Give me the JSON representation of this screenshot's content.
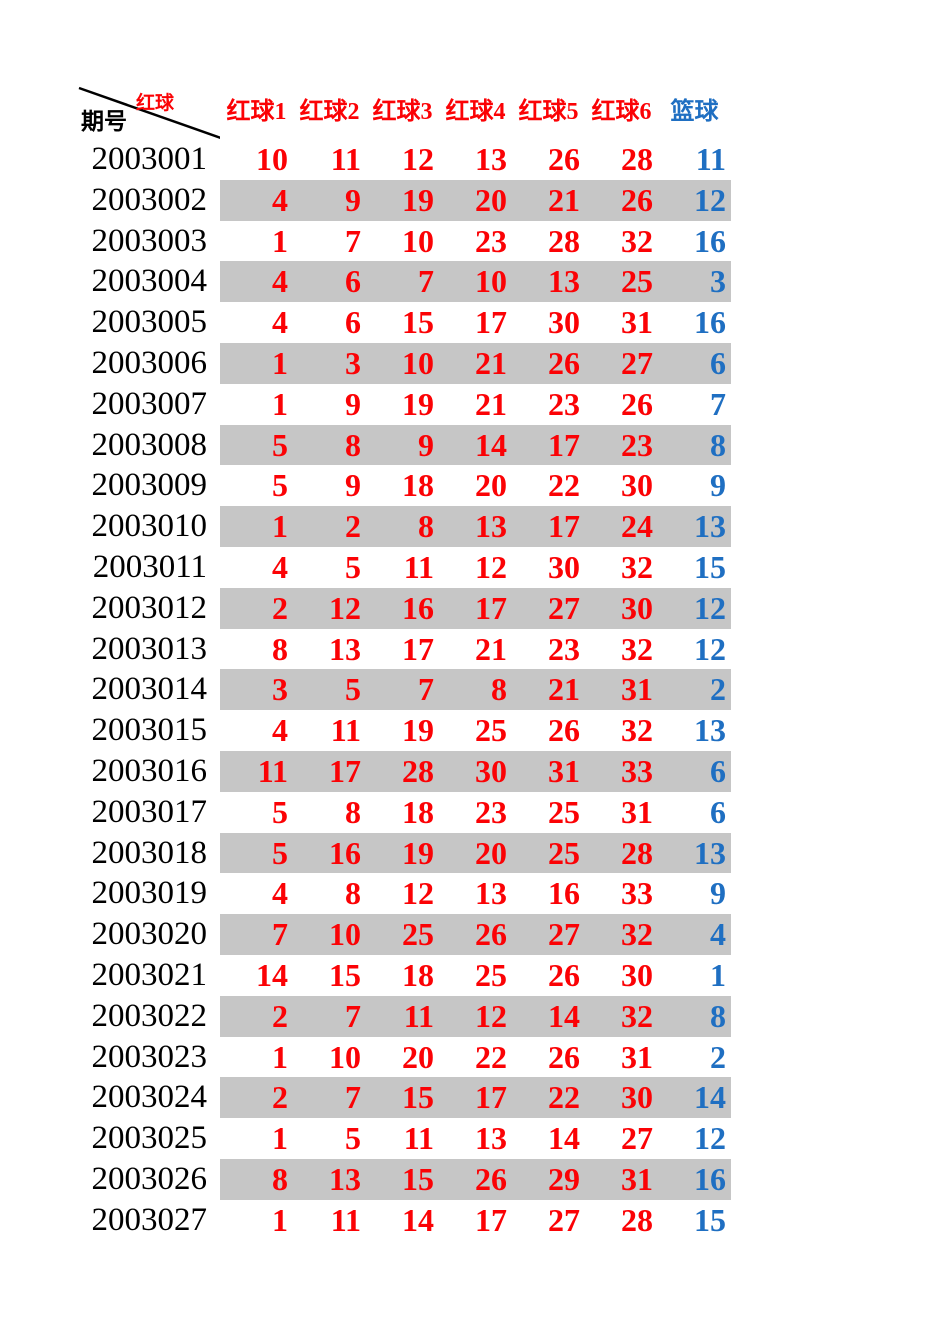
{
  "colors": {
    "red_ball": "#FB0205",
    "blue_ball": "#1F6FC2",
    "stripe": "#C6C6C6",
    "text": "#000000",
    "diagonal_line": "#000000",
    "background": "#FFFFFF"
  },
  "table": {
    "corner": {
      "top_label": "红球",
      "bottom_label": "期号"
    },
    "columns": [
      "红球1",
      "红球2",
      "红球3",
      "红球4",
      "红球5",
      "红球6",
      "篮球"
    ],
    "rows": [
      {
        "period": "2003001",
        "red_balls": [
          10,
          11,
          12,
          13,
          26,
          28
        ],
        "blue_ball": 11,
        "striped": false
      },
      {
        "period": "2003002",
        "red_balls": [
          4,
          9,
          19,
          20,
          21,
          26
        ],
        "blue_ball": 12,
        "striped": true
      },
      {
        "period": "2003003",
        "red_balls": [
          1,
          7,
          10,
          23,
          28,
          32
        ],
        "blue_ball": 16,
        "striped": false
      },
      {
        "period": "2003004",
        "red_balls": [
          4,
          6,
          7,
          10,
          13,
          25
        ],
        "blue_ball": 3,
        "striped": true
      },
      {
        "period": "2003005",
        "red_balls": [
          4,
          6,
          15,
          17,
          30,
          31
        ],
        "blue_ball": 16,
        "striped": false
      },
      {
        "period": "2003006",
        "red_balls": [
          1,
          3,
          10,
          21,
          26,
          27
        ],
        "blue_ball": 6,
        "striped": true
      },
      {
        "period": "2003007",
        "red_balls": [
          1,
          9,
          19,
          21,
          23,
          26
        ],
        "blue_ball": 7,
        "striped": false
      },
      {
        "period": "2003008",
        "red_balls": [
          5,
          8,
          9,
          14,
          17,
          23
        ],
        "blue_ball": 8,
        "striped": true
      },
      {
        "period": "2003009",
        "red_balls": [
          5,
          9,
          18,
          20,
          22,
          30
        ],
        "blue_ball": 9,
        "striped": false
      },
      {
        "period": "2003010",
        "red_balls": [
          1,
          2,
          8,
          13,
          17,
          24
        ],
        "blue_ball": 13,
        "striped": true
      },
      {
        "period": "2003011",
        "red_balls": [
          4,
          5,
          11,
          12,
          30,
          32
        ],
        "blue_ball": 15,
        "striped": false
      },
      {
        "period": "2003012",
        "red_balls": [
          2,
          12,
          16,
          17,
          27,
          30
        ],
        "blue_ball": 12,
        "striped": true
      },
      {
        "period": "2003013",
        "red_balls": [
          8,
          13,
          17,
          21,
          23,
          32
        ],
        "blue_ball": 12,
        "striped": false
      },
      {
        "period": "2003014",
        "red_balls": [
          3,
          5,
          7,
          8,
          21,
          31
        ],
        "blue_ball": 2,
        "striped": true
      },
      {
        "period": "2003015",
        "red_balls": [
          4,
          11,
          19,
          25,
          26,
          32
        ],
        "blue_ball": 13,
        "striped": false
      },
      {
        "period": "2003016",
        "red_balls": [
          11,
          17,
          28,
          30,
          31,
          33
        ],
        "blue_ball": 6,
        "striped": true
      },
      {
        "period": "2003017",
        "red_balls": [
          5,
          8,
          18,
          23,
          25,
          31
        ],
        "blue_ball": 6,
        "striped": false
      },
      {
        "period": "2003018",
        "red_balls": [
          5,
          16,
          19,
          20,
          25,
          28
        ],
        "blue_ball": 13,
        "striped": true
      },
      {
        "period": "2003019",
        "red_balls": [
          4,
          8,
          12,
          13,
          16,
          33
        ],
        "blue_ball": 9,
        "striped": false
      },
      {
        "period": "2003020",
        "red_balls": [
          7,
          10,
          25,
          26,
          27,
          32
        ],
        "blue_ball": 4,
        "striped": true
      },
      {
        "period": "2003021",
        "red_balls": [
          14,
          15,
          18,
          25,
          26,
          30
        ],
        "blue_ball": 1,
        "striped": false
      },
      {
        "period": "2003022",
        "red_balls": [
          2,
          7,
          11,
          12,
          14,
          32
        ],
        "blue_ball": 8,
        "striped": true
      },
      {
        "period": "2003023",
        "red_balls": [
          1,
          10,
          20,
          22,
          26,
          31
        ],
        "blue_ball": 2,
        "striped": false
      },
      {
        "period": "2003024",
        "red_balls": [
          2,
          7,
          15,
          17,
          22,
          30
        ],
        "blue_ball": 14,
        "striped": true
      },
      {
        "period": "2003025",
        "red_balls": [
          1,
          5,
          11,
          13,
          14,
          27
        ],
        "blue_ball": 12,
        "striped": false
      },
      {
        "period": "2003026",
        "red_balls": [
          8,
          13,
          15,
          26,
          29,
          31
        ],
        "blue_ball": 16,
        "striped": true
      },
      {
        "period": "2003027",
        "red_balls": [
          1,
          11,
          14,
          17,
          27,
          28
        ],
        "blue_ball": 15,
        "striped": false
      }
    ]
  }
}
